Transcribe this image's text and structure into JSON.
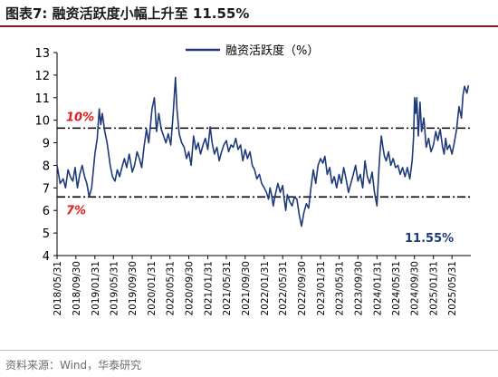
{
  "figure": {
    "title": "图表7:   融资活跃度小幅上升至 11.55%",
    "source": "资料来源：Wind，华泰研究"
  },
  "colors": {
    "series": "#1f3a7a",
    "ref_lines": "#000000",
    "ref_labels": "#e01c1c",
    "latest_label": "#1f3a7a",
    "title_rule": "#7f1d1d"
  },
  "chart_data": {
    "type": "line",
    "title": "",
    "xlabel": "",
    "ylabel": "",
    "ylim": [
      4,
      13
    ],
    "yticks": [
      4,
      5,
      6,
      7,
      8,
      9,
      10,
      11,
      12,
      13
    ],
    "xlim": [
      "2018-05-31",
      "2025-09-30"
    ],
    "xticks": [
      "2018/05/31",
      "2018/09/30",
      "2019/01/31",
      "2019/05/31",
      "2019/09/30",
      "2020/01/31",
      "2020/05/31",
      "2020/09/30",
      "2021/01/31",
      "2021/05/31",
      "2021/09/30",
      "2022/01/31",
      "2022/05/31",
      "2022/09/30",
      "2023/01/31",
      "2023/05/31",
      "2023/09/30",
      "2024/01/31",
      "2024/05/31",
      "2024/09/30",
      "2025/01/31",
      "2025/05/31"
    ],
    "grid": false,
    "legend": {
      "position": "top-center",
      "entries": [
        "融资活跃度（%）"
      ]
    },
    "reference_lines": [
      {
        "y": 9.65,
        "label": "10%",
        "style": "dash-dot"
      },
      {
        "y": 6.6,
        "label": "7%",
        "style": "dash-dot"
      }
    ],
    "annotations": [
      {
        "text": "11.55%",
        "position": "near-last-point"
      }
    ],
    "series": [
      {
        "name": "融资活跃度（%）",
        "points": [
          [
            "2018-05-31",
            8.0
          ],
          [
            "2018-06-20",
            7.2
          ],
          [
            "2018-07-10",
            7.4
          ],
          [
            "2018-07-25",
            7.0
          ],
          [
            "2018-08-10",
            7.8
          ],
          [
            "2018-08-25",
            7.5
          ],
          [
            "2018-09-10",
            7.3
          ],
          [
            "2018-09-25",
            7.9
          ],
          [
            "2018-10-10",
            7.0
          ],
          [
            "2018-10-25",
            7.6
          ],
          [
            "2018-11-10",
            8.0
          ],
          [
            "2018-11-25",
            7.5
          ],
          [
            "2018-12-10",
            7.2
          ],
          [
            "2018-12-25",
            6.6
          ],
          [
            "2019-01-10",
            7.0
          ],
          [
            "2019-01-31",
            8.5
          ],
          [
            "2019-02-15",
            9.2
          ],
          [
            "2019-02-28",
            10.5
          ],
          [
            "2019-03-10",
            9.8
          ],
          [
            "2019-03-20",
            10.3
          ],
          [
            "2019-04-05",
            9.5
          ],
          [
            "2019-04-20",
            9.0
          ],
          [
            "2019-05-10",
            8.0
          ],
          [
            "2019-05-25",
            7.5
          ],
          [
            "2019-06-10",
            7.3
          ],
          [
            "2019-06-25",
            7.8
          ],
          [
            "2019-07-10",
            7.5
          ],
          [
            "2019-07-25",
            7.9
          ],
          [
            "2019-08-10",
            8.3
          ],
          [
            "2019-08-25",
            7.9
          ],
          [
            "2019-09-10",
            8.5
          ],
          [
            "2019-09-30",
            7.7
          ],
          [
            "2019-10-15",
            8.0
          ],
          [
            "2019-10-31",
            8.6
          ],
          [
            "2019-11-15",
            8.3
          ],
          [
            "2019-11-30",
            7.9
          ],
          [
            "2019-12-15",
            8.8
          ],
          [
            "2019-12-31",
            9.6
          ],
          [
            "2020-01-15",
            9.0
          ],
          [
            "2020-02-05",
            10.5
          ],
          [
            "2020-02-20",
            11.0
          ],
          [
            "2020-03-05",
            9.5
          ],
          [
            "2020-03-20",
            10.3
          ],
          [
            "2020-04-05",
            9.6
          ],
          [
            "2020-04-20",
            9.3
          ],
          [
            "2020-05-05",
            9.0
          ],
          [
            "2020-05-20",
            9.4
          ],
          [
            "2020-06-05",
            8.9
          ],
          [
            "2020-06-20",
            10.2
          ],
          [
            "2020-07-06",
            11.9
          ],
          [
            "2020-07-15",
            10.5
          ],
          [
            "2020-07-30",
            9.4
          ],
          [
            "2020-08-15",
            9.0
          ],
          [
            "2020-08-31",
            8.8
          ],
          [
            "2020-09-15",
            8.3
          ],
          [
            "2020-09-30",
            8.6
          ],
          [
            "2020-10-15",
            8.0
          ],
          [
            "2020-10-31",
            9.3
          ],
          [
            "2020-11-15",
            8.7
          ],
          [
            "2020-11-30",
            9.0
          ],
          [
            "2020-12-15",
            8.5
          ],
          [
            "2020-12-31",
            8.9
          ],
          [
            "2021-01-15",
            9.2
          ],
          [
            "2021-01-31",
            8.7
          ],
          [
            "2021-02-15",
            9.7
          ],
          [
            "2021-02-28",
            9.0
          ],
          [
            "2021-03-15",
            8.5
          ],
          [
            "2021-03-31",
            8.8
          ],
          [
            "2021-04-15",
            8.2
          ],
          [
            "2021-04-30",
            8.6
          ],
          [
            "2021-05-15",
            8.9
          ],
          [
            "2021-05-31",
            9.1
          ],
          [
            "2021-06-15",
            8.6
          ],
          [
            "2021-06-30",
            8.9
          ],
          [
            "2021-07-15",
            8.8
          ],
          [
            "2021-07-31",
            9.2
          ],
          [
            "2021-08-15",
            8.7
          ],
          [
            "2021-08-31",
            8.9
          ],
          [
            "2021-09-15",
            8.2
          ],
          [
            "2021-09-30",
            8.7
          ],
          [
            "2021-10-15",
            8.3
          ],
          [
            "2021-10-31",
            8.6
          ],
          [
            "2021-11-15",
            8.0
          ],
          [
            "2021-11-30",
            7.8
          ],
          [
            "2021-12-15",
            7.4
          ],
          [
            "2021-12-31",
            7.6
          ],
          [
            "2022-01-15",
            7.2
          ],
          [
            "2022-01-31",
            7.0
          ],
          [
            "2022-02-15",
            6.8
          ],
          [
            "2022-02-28",
            6.5
          ],
          [
            "2022-03-10",
            7.0
          ],
          [
            "2022-03-20",
            6.7
          ],
          [
            "2022-03-31",
            6.2
          ],
          [
            "2022-04-10",
            6.6
          ],
          [
            "2022-04-20",
            6.9
          ],
          [
            "2022-04-30",
            7.2
          ],
          [
            "2022-05-15",
            6.8
          ],
          [
            "2022-05-31",
            7.1
          ],
          [
            "2022-06-10",
            6.5
          ],
          [
            "2022-06-20",
            6.0
          ],
          [
            "2022-06-30",
            6.7
          ],
          [
            "2022-07-15",
            6.4
          ],
          [
            "2022-07-31",
            6.2
          ],
          [
            "2022-08-15",
            6.6
          ],
          [
            "2022-08-31",
            6.5
          ],
          [
            "2022-09-15",
            5.8
          ],
          [
            "2022-09-30",
            5.3
          ],
          [
            "2022-10-15",
            5.9
          ],
          [
            "2022-10-31",
            6.3
          ],
          [
            "2022-11-15",
            6.1
          ],
          [
            "2022-11-30",
            7.0
          ],
          [
            "2022-12-15",
            7.8
          ],
          [
            "2022-12-31",
            7.2
          ],
          [
            "2023-01-15",
            8.0
          ],
          [
            "2023-01-31",
            8.3
          ],
          [
            "2023-02-15",
            8.1
          ],
          [
            "2023-02-28",
            8.4
          ],
          [
            "2023-03-15",
            7.6
          ],
          [
            "2023-03-31",
            7.9
          ],
          [
            "2023-04-15",
            7.2
          ],
          [
            "2023-04-30",
            7.5
          ],
          [
            "2023-05-15",
            7.0
          ],
          [
            "2023-05-31",
            7.6
          ],
          [
            "2023-06-15",
            7.2
          ],
          [
            "2023-06-30",
            7.9
          ],
          [
            "2023-07-15",
            7.4
          ],
          [
            "2023-07-31",
            6.8
          ],
          [
            "2023-08-15",
            7.2
          ],
          [
            "2023-08-31",
            7.6
          ],
          [
            "2023-09-15",
            8.0
          ],
          [
            "2023-09-30",
            7.3
          ],
          [
            "2023-10-15",
            7.6
          ],
          [
            "2023-10-31",
            7.0
          ],
          [
            "2023-11-15",
            8.2
          ],
          [
            "2023-11-30",
            7.5
          ],
          [
            "2023-12-15",
            7.2
          ],
          [
            "2023-12-31",
            7.7
          ],
          [
            "2024-01-15",
            6.8
          ],
          [
            "2024-01-31",
            6.2
          ],
          [
            "2024-02-10",
            7.5
          ],
          [
            "2024-02-20",
            8.6
          ],
          [
            "2024-02-29",
            9.3
          ],
          [
            "2024-03-10",
            8.8
          ],
          [
            "2024-03-20",
            8.4
          ],
          [
            "2024-03-31",
            8.2
          ],
          [
            "2024-04-15",
            8.6
          ],
          [
            "2024-04-30",
            8.0
          ],
          [
            "2024-05-15",
            8.3
          ],
          [
            "2024-05-31",
            7.9
          ],
          [
            "2024-06-15",
            8.0
          ],
          [
            "2024-06-30",
            7.6
          ],
          [
            "2024-07-15",
            7.9
          ],
          [
            "2024-07-31",
            7.5
          ],
          [
            "2024-08-15",
            7.9
          ],
          [
            "2024-08-31",
            7.4
          ],
          [
            "2024-09-15",
            8.2
          ],
          [
            "2024-09-24",
            9.2
          ],
          [
            "2024-10-01",
            11.0
          ],
          [
            "2024-10-08",
            10.3
          ],
          [
            "2024-10-15",
            11.0
          ],
          [
            "2024-10-25",
            9.3
          ],
          [
            "2024-11-05",
            10.8
          ],
          [
            "2024-11-15",
            9.5
          ],
          [
            "2024-11-30",
            10.1
          ],
          [
            "2024-12-15",
            8.8
          ],
          [
            "2024-12-31",
            9.2
          ],
          [
            "2025-01-15",
            8.6
          ],
          [
            "2025-01-31",
            8.9
          ],
          [
            "2025-02-15",
            9.5
          ],
          [
            "2025-02-28",
            9.1
          ],
          [
            "2025-03-15",
            9.6
          ],
          [
            "2025-03-31",
            8.8
          ],
          [
            "2025-04-10",
            8.5
          ],
          [
            "2025-04-20",
            9.2
          ],
          [
            "2025-04-30",
            8.7
          ],
          [
            "2025-05-15",
            8.9
          ],
          [
            "2025-05-31",
            8.5
          ],
          [
            "2025-06-15",
            9.0
          ],
          [
            "2025-06-30",
            9.6
          ],
          [
            "2025-07-15",
            10.6
          ],
          [
            "2025-07-31",
            10.1
          ],
          [
            "2025-08-10",
            11.1
          ],
          [
            "2025-08-20",
            11.5
          ],
          [
            "2025-09-05",
            11.2
          ],
          [
            "2025-09-15",
            11.55
          ]
        ]
      }
    ]
  }
}
